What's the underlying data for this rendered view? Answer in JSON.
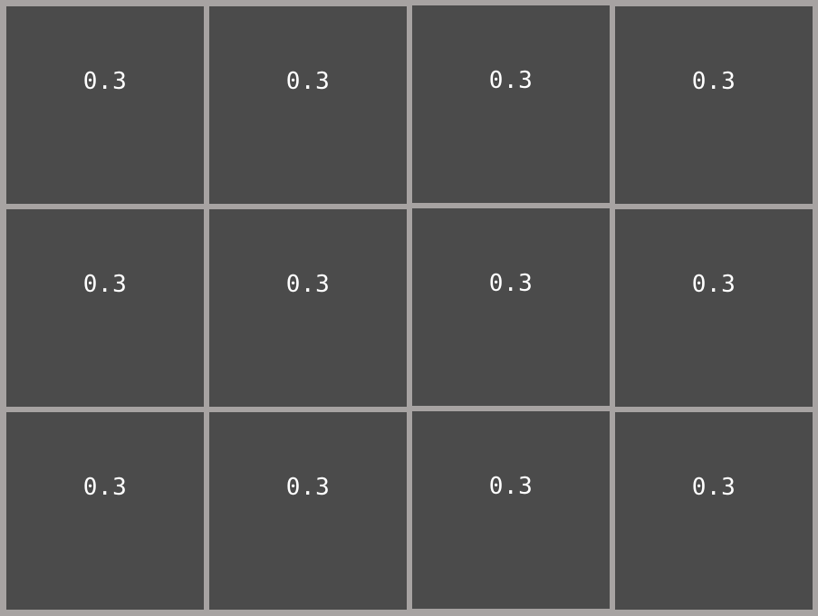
{
  "grid": {
    "rows": 3,
    "columns": 4,
    "cells": [
      [
        "0.3",
        "0.3",
        "0.3",
        "0.3"
      ],
      [
        "0.3",
        "0.3",
        "0.3",
        "0.3"
      ],
      [
        "0.3",
        "0.3",
        "0.3",
        "0.3"
      ]
    ]
  },
  "colors": {
    "tile": "#4b4b4b",
    "gridline": "#a7a3a2",
    "text": "#ffffff"
  }
}
